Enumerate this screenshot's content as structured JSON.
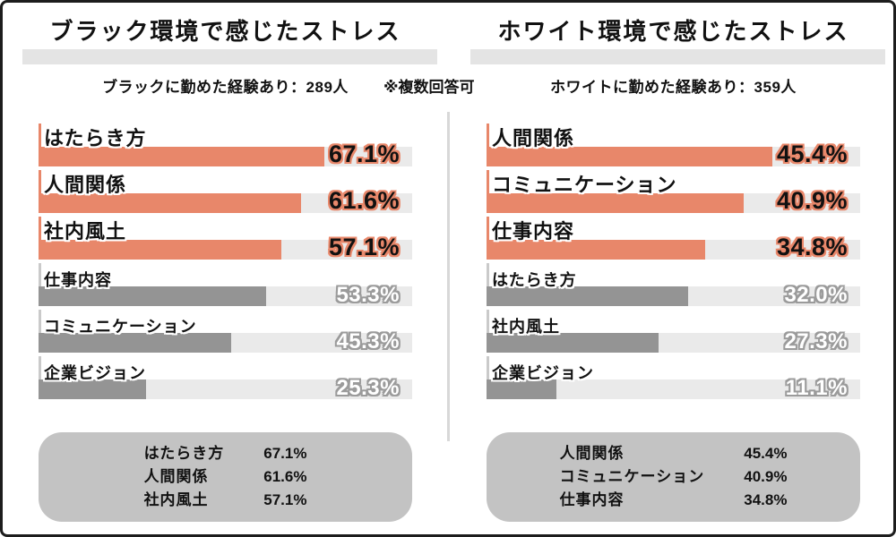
{
  "note": "※複数回答可",
  "colors": {
    "accent": "#E8876A",
    "bar_gray": "#949494",
    "track": "#EAEAEA",
    "summary_bg": "#C3C3C3",
    "divider": "#D8D8D8",
    "title_highlight": "#E4E4E4"
  },
  "chart_data": [
    {
      "type": "bar",
      "orientation": "horizontal",
      "title": "ブラック環境で感じたストレス",
      "subtitle": "ブラックに勤めた経験あり：289人",
      "note": "※複数回答可",
      "unit": "%",
      "xlim": [
        0,
        100
      ],
      "categories": [
        "はたらき方",
        "人間関係",
        "社内風土",
        "仕事内容",
        "コミュニケーション",
        "企業ビジョン"
      ],
      "values": [
        67.1,
        61.6,
        57.1,
        53.3,
        45.3,
        25.3
      ],
      "highlight_count": 3,
      "highlight_color": "#E8876A",
      "other_color": "#949494",
      "summary_top3": {
        "labels": [
          "はたらき方",
          "人間関係",
          "社内風土"
        ],
        "values": [
          "67.1%",
          "61.6%",
          "57.1%"
        ]
      }
    },
    {
      "type": "bar",
      "orientation": "horizontal",
      "title": "ホワイト環境で感じたストレス",
      "subtitle": "ホワイトに勤めた経験あり：359人",
      "note": "※複数回答可",
      "unit": "%",
      "xlim": [
        0,
        100
      ],
      "categories": [
        "人間関係",
        "コミュニケーション",
        "仕事内容",
        "はたらき方",
        "社内風土",
        "企業ビジョン"
      ],
      "values": [
        45.4,
        40.9,
        34.8,
        32.0,
        27.3,
        11.1
      ],
      "highlight_count": 3,
      "highlight_color": "#E8876A",
      "other_color": "#949494",
      "summary_top3": {
        "labels": [
          "人間関係",
          "コミュニケーション",
          "仕事内容"
        ],
        "values": [
          "45.4%",
          "40.9%",
          "34.8%"
        ]
      }
    }
  ]
}
